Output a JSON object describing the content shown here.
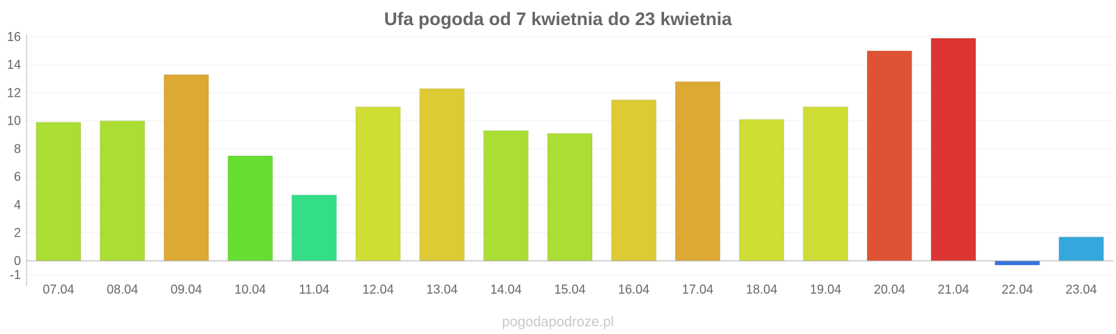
{
  "watermark": "pogodapodroze.pl",
  "chart_data": {
    "type": "bar",
    "title": "Ufa pogoda od 7 kwietnia do 23 kwietnia",
    "xlabel": "",
    "ylabel": "",
    "ylim": [
      -1.5,
      16.2
    ],
    "yticks": [
      16,
      14,
      12,
      10,
      8,
      6,
      4,
      2,
      0,
      -1
    ],
    "grid": true,
    "legend": "none",
    "categories": [
      "07.04",
      "08.04",
      "09.04",
      "10.04",
      "11.04",
      "12.04",
      "13.04",
      "14.04",
      "15.04",
      "16.04",
      "17.04",
      "18.04",
      "19.04",
      "20.04",
      "21.04",
      "22.04",
      "23.04"
    ],
    "values": [
      9.9,
      10.0,
      13.3,
      7.5,
      4.7,
      11.0,
      12.3,
      9.3,
      9.1,
      11.5,
      12.8,
      10.1,
      11.0,
      15.0,
      15.9,
      -0.3,
      1.7
    ],
    "colors": [
      "#abdd34",
      "#abdd34",
      "#dda834",
      "#67dd34",
      "#34dd88",
      "#cfdd34",
      "#ddca34",
      "#abdd34",
      "#abdd34",
      "#ddca34",
      "#dda834",
      "#cfdd34",
      "#cfdd34",
      "#dd5334",
      "#dd3434",
      "#3472dd",
      "#34a8dd"
    ]
  }
}
